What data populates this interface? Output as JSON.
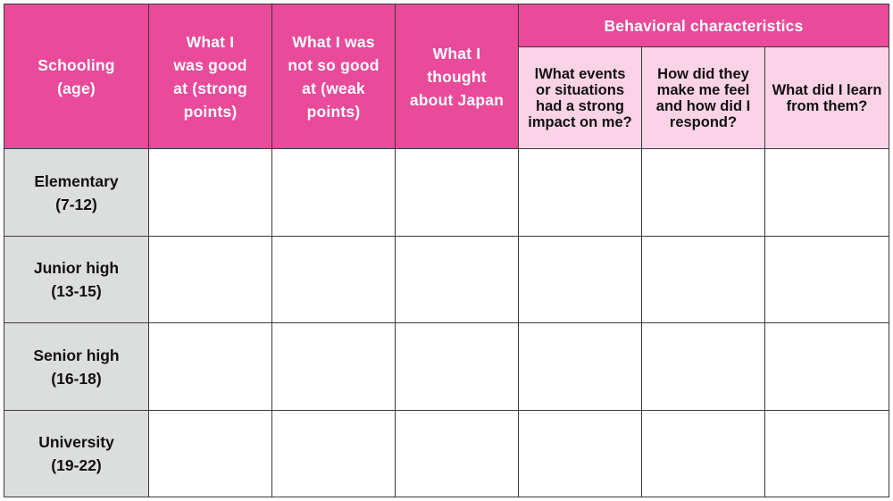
{
  "table": {
    "header": {
      "schooling": [
        "Schooling",
        "(age)"
      ],
      "strong": [
        "What I",
        "was good",
        "at (strong",
        "points)"
      ],
      "weak": [
        "What I was",
        "not so good",
        "at (weak",
        "points)"
      ],
      "japan": [
        "What I",
        "thought",
        "about Japan"
      ],
      "behavioral": "Behavioral characteristics",
      "sub_events": [
        "lWhat events",
        "or situations",
        "had a strong",
        "impact on me?"
      ],
      "sub_feel": [
        "How did they",
        "make me feel",
        "and how did I",
        "respond?"
      ],
      "sub_learn": [
        "What did I learn",
        "from them?"
      ]
    },
    "rows": [
      {
        "label": [
          "Elementary",
          "(7-12)"
        ]
      },
      {
        "label": [
          "Junior high",
          "(13-15)"
        ]
      },
      {
        "label": [
          "Senior high",
          "(16-18)"
        ]
      },
      {
        "label": [
          "University",
          "(19-22)"
        ]
      }
    ]
  },
  "colors": {
    "header_pink": "#e94a9a",
    "subheader_light_pink": "#fbd3e6",
    "row_header_gray": "#dcdedd"
  }
}
